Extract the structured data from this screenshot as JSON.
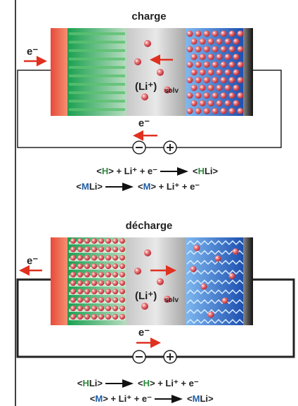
{
  "panels": [
    {
      "title": "charge",
      "electron_left": "e⁻",
      "ion": "(Li⁺)",
      "ion_sub": "solv",
      "electron_bottom": "e⁻",
      "equations": [
        {
          "left": [
            "<",
            "H",
            "> + Li⁺ + e⁻"
          ],
          "right": [
            "<",
            "H",
            "Li>"
          ]
        },
        {
          "left": [
            "<",
            "M",
            "Li>"
          ],
          "right": [
            "<",
            "M",
            "> + Li⁺ + e⁻"
          ]
        }
      ]
    },
    {
      "title": "décharge",
      "electron_left": "e⁻",
      "ion": "(Li⁺)",
      "ion_sub": "solv",
      "electron_bottom": "e⁻",
      "equations": [
        {
          "left": [
            "<",
            "H",
            "Li>"
          ],
          "right": [
            "<",
            "H",
            "> + Li⁺ + e⁻"
          ]
        },
        {
          "left": [
            "<",
            "M",
            "> + Li⁺ + e⁻"
          ],
          "right": [
            "<",
            "M",
            "Li>"
          ]
        }
      ]
    }
  ]
}
